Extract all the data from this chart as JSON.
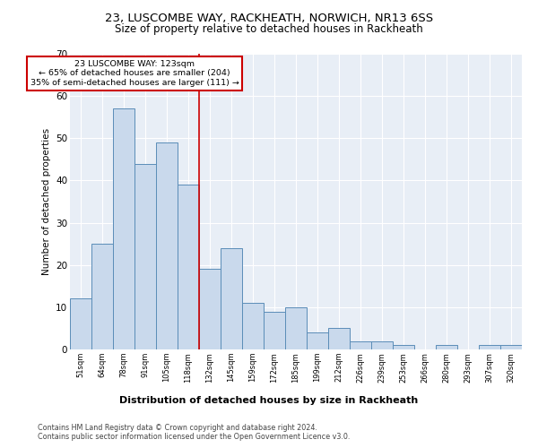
{
  "title1": "23, LUSCOMBE WAY, RACKHEATH, NORWICH, NR13 6SS",
  "title2": "Size of property relative to detached houses in Rackheath",
  "xlabel": "Distribution of detached houses by size in Rackheath",
  "ylabel": "Number of detached properties",
  "categories": [
    "51sqm",
    "64sqm",
    "78sqm",
    "91sqm",
    "105sqm",
    "118sqm",
    "132sqm",
    "145sqm",
    "159sqm",
    "172sqm",
    "185sqm",
    "199sqm",
    "212sqm",
    "226sqm",
    "239sqm",
    "253sqm",
    "266sqm",
    "280sqm",
    "293sqm",
    "307sqm",
    "320sqm"
  ],
  "values": [
    12,
    25,
    57,
    44,
    49,
    39,
    19,
    24,
    11,
    9,
    10,
    4,
    5,
    2,
    2,
    1,
    0,
    1,
    0,
    1,
    1
  ],
  "bar_color": "#c9d9ec",
  "bar_edge_color": "#5b8db8",
  "bg_color": "#e8eef6",
  "grid_color": "#ffffff",
  "property_line_x": 5.5,
  "annotation_text": "23 LUSCOMBE WAY: 123sqm\n← 65% of detached houses are smaller (204)\n35% of semi-detached houses are larger (111) →",
  "annotation_box_color": "#ffffff",
  "annotation_border_color": "#cc0000",
  "property_line_color": "#cc0000",
  "ylim": [
    0,
    70
  ],
  "footer1": "Contains HM Land Registry data © Crown copyright and database right 2024.",
  "footer2": "Contains public sector information licensed under the Open Government Licence v3.0."
}
